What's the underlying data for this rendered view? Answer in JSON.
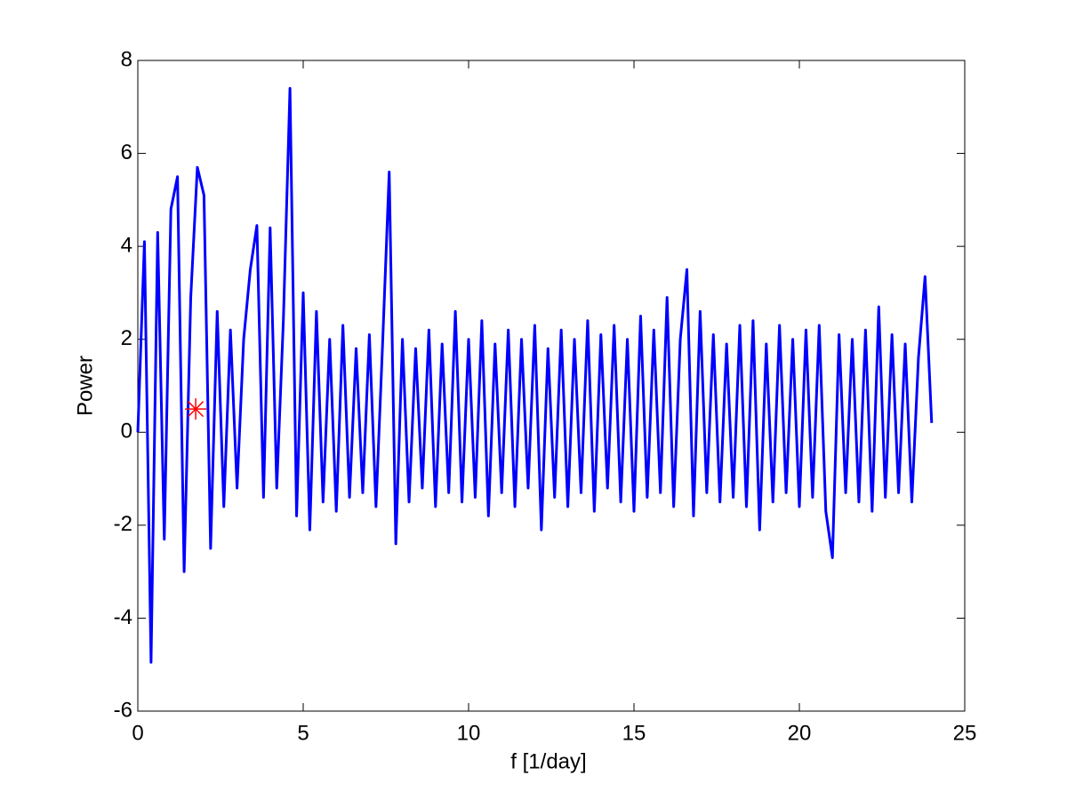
{
  "chart_data": {
    "type": "line",
    "xlabel": "f [1/day]",
    "ylabel": "Power",
    "x": [
      0,
      0.2,
      0.4,
      0.6,
      0.8,
      1.0,
      1.2,
      1.4,
      1.6,
      1.8,
      2.0,
      2.2,
      2.4,
      2.6,
      2.8,
      3.0,
      3.2,
      3.4,
      3.6,
      3.8,
      4.0,
      4.2,
      4.4,
      4.6,
      4.8,
      5.0,
      5.2,
      5.4,
      5.6,
      5.8,
      6.0,
      6.2,
      6.4,
      6.6,
      6.8,
      7.0,
      7.2,
      7.4,
      7.6,
      7.8,
      8.0,
      8.2,
      8.4,
      8.6,
      8.8,
      9.0,
      9.2,
      9.4,
      9.6,
      9.8,
      10.0,
      10.2,
      10.4,
      10.6,
      10.8,
      11.0,
      11.2,
      11.4,
      11.6,
      11.8,
      12.0,
      12.2,
      12.4,
      12.6,
      12.8,
      13.0,
      13.2,
      13.4,
      13.6,
      13.8,
      14.0,
      14.2,
      14.4,
      14.6,
      14.8,
      15.0,
      15.2,
      15.4,
      15.6,
      15.8,
      16.0,
      16.2,
      16.4,
      16.6,
      16.8,
      17.0,
      17.2,
      17.4,
      17.6,
      17.8,
      18.0,
      18.2,
      18.4,
      18.6,
      18.8,
      19.0,
      19.2,
      19.4,
      19.6,
      19.8,
      20.0,
      20.2,
      20.4,
      20.6,
      20.8,
      21.0,
      21.2,
      21.4,
      21.6,
      21.8,
      22.0,
      22.2,
      22.4,
      22.6,
      22.8,
      23.0,
      23.2,
      23.4,
      23.6,
      23.8,
      24.0
    ],
    "series": [
      {
        "color": "#0000ff",
        "values": [
          0.0,
          4.1,
          -4.95,
          4.3,
          -2.3,
          4.8,
          5.5,
          -3.0,
          2.9,
          5.7,
          5.1,
          -2.5,
          2.6,
          -1.6,
          2.2,
          -1.2,
          2.0,
          3.5,
          4.45,
          -1.4,
          4.4,
          -1.2,
          2.4,
          7.4,
          -1.8,
          3.0,
          -2.1,
          2.6,
          -1.5,
          2.0,
          -1.7,
          2.3,
          -1.4,
          1.8,
          -1.3,
          2.1,
          -1.6,
          1.9,
          5.6,
          -2.4,
          2.0,
          -1.5,
          1.8,
          -1.2,
          2.2,
          -1.6,
          1.9,
          -1.3,
          2.6,
          -1.5,
          2.0,
          -1.4,
          2.4,
          -1.8,
          1.9,
          -1.3,
          2.2,
          -1.6,
          2.0,
          -1.2,
          2.3,
          -2.1,
          1.8,
          -1.4,
          2.2,
          -1.6,
          2.0,
          -1.3,
          2.4,
          -1.7,
          2.1,
          -1.2,
          2.3,
          -1.5,
          2.0,
          -1.7,
          2.5,
          -1.4,
          2.2,
          -1.3,
          2.9,
          -1.6,
          2.0,
          3.5,
          -1.8,
          2.6,
          -1.3,
          2.1,
          -1.5,
          1.9,
          -1.4,
          2.3,
          -1.6,
          2.4,
          -2.1,
          1.9,
          -1.5,
          2.3,
          -1.3,
          2.0,
          -1.6,
          2.2,
          -1.4,
          2.3,
          -1.7,
          -2.7,
          2.1,
          -1.3,
          2.0,
          -1.5,
          2.2,
          -1.7,
          2.7,
          -1.4,
          2.1,
          -1.3,
          1.9,
          -1.5,
          1.6,
          3.35,
          0.2
        ]
      }
    ],
    "marker": {
      "x": 1.75,
      "y": 0.5,
      "color": "#ff0000"
    },
    "xlim": [
      0,
      25
    ],
    "xticks": [
      0,
      5,
      10,
      15,
      20,
      25
    ],
    "ylim": [
      -6,
      8
    ],
    "yticks": [
      -6,
      -4,
      -2,
      0,
      2,
      4,
      6,
      8
    ]
  }
}
